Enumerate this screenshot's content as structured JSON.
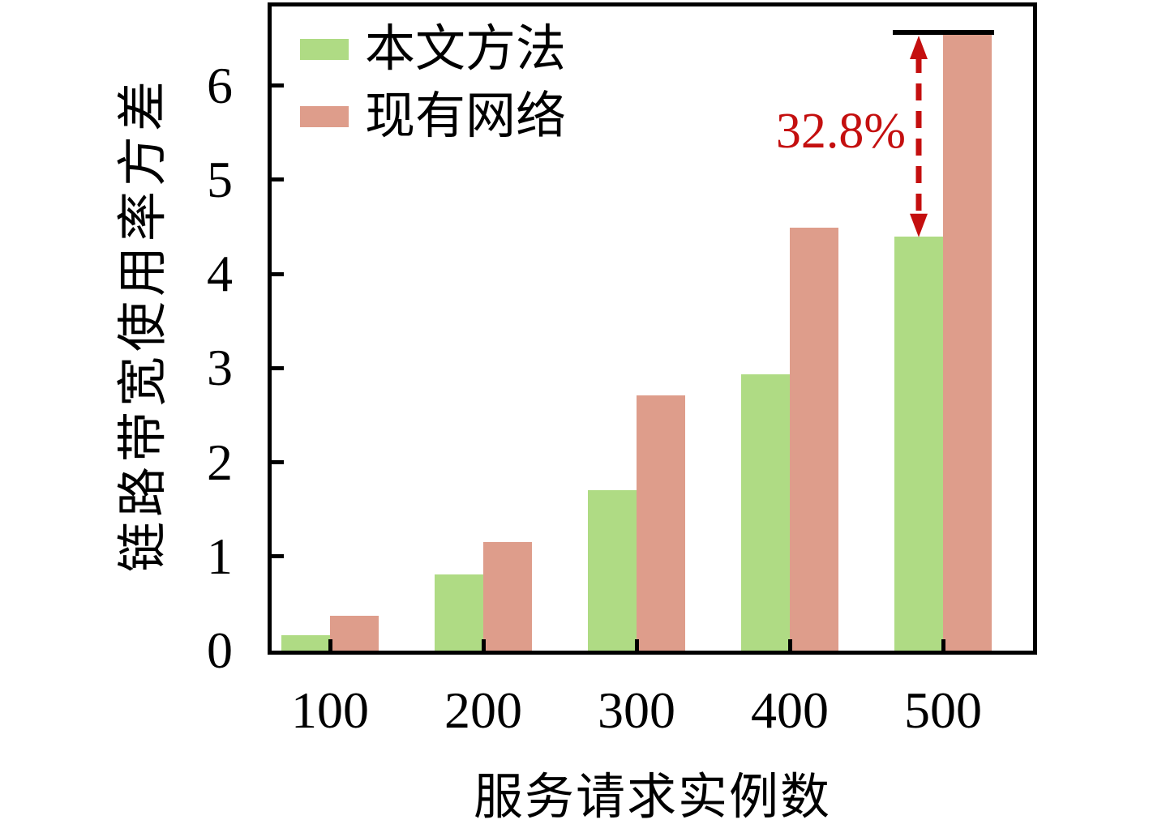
{
  "chart_data": {
    "type": "bar",
    "categories": [
      "100",
      "200",
      "300",
      "400",
      "500"
    ],
    "series": [
      {
        "name": "本文方法",
        "color": "#afdb84",
        "values": [
          0.16,
          0.81,
          1.7,
          2.93,
          4.4
        ]
      },
      {
        "name": "现有网络",
        "color": "#de9d8b",
        "values": [
          0.37,
          1.15,
          2.71,
          4.49,
          6.54
        ]
      }
    ],
    "xlabel": "服务请求实例数",
    "ylabel": "链路带宽使用率方差",
    "yticks": [
      0,
      1,
      2,
      3,
      4,
      5,
      6
    ],
    "ylim": [
      0,
      6.84
    ],
    "grid": false,
    "legend_position": "upper-left",
    "axis_color": "#000000",
    "background": "#ffffff",
    "annotation": {
      "text": "32.8%",
      "color": "#c40f0f",
      "category": "500",
      "from_series": "现有网络",
      "to_series": "本文方法"
    }
  }
}
